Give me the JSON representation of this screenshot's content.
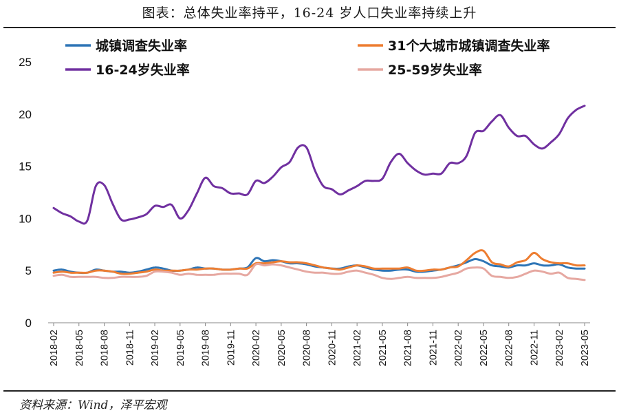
{
  "title": "图表：总体失业率持平，16-24 岁人口失业率持续上升",
  "source": "资料来源：Wind，泽平宏观",
  "chart_data": {
    "type": "line",
    "ylim": [
      0,
      25
    ],
    "yticks": [
      0,
      5,
      10,
      15,
      20,
      25
    ],
    "x_tick_labels": [
      "2018-02",
      "2018-05",
      "2018-08",
      "2018-11",
      "2019-02",
      "2019-05",
      "2019-08",
      "2019-11",
      "2020-02",
      "2020-05",
      "2020-08",
      "2020-11",
      "2021-02",
      "2021-05",
      "2021-08",
      "2021-11",
      "2022-02",
      "2022-05",
      "2022-08",
      "2022-11",
      "2023-02",
      "2023-05"
    ],
    "x": [
      "2018-02",
      "2018-03",
      "2018-04",
      "2018-05",
      "2018-06",
      "2018-07",
      "2018-08",
      "2018-09",
      "2018-10",
      "2018-11",
      "2018-12",
      "2019-01",
      "2019-02",
      "2019-03",
      "2019-04",
      "2019-05",
      "2019-06",
      "2019-07",
      "2019-08",
      "2019-09",
      "2019-10",
      "2019-11",
      "2019-12",
      "2020-01",
      "2020-02",
      "2020-03",
      "2020-04",
      "2020-05",
      "2020-06",
      "2020-07",
      "2020-08",
      "2020-09",
      "2020-10",
      "2020-11",
      "2020-12",
      "2021-01",
      "2021-02",
      "2021-03",
      "2021-04",
      "2021-05",
      "2021-06",
      "2021-07",
      "2021-08",
      "2021-09",
      "2021-10",
      "2021-11",
      "2021-12",
      "2022-01",
      "2022-02",
      "2022-03",
      "2022-04",
      "2022-05",
      "2022-06",
      "2022-07",
      "2022-08",
      "2022-09",
      "2022-10",
      "2022-11",
      "2022-12",
      "2023-01",
      "2023-02",
      "2023-03",
      "2023-04",
      "2023-05"
    ],
    "series": [
      {
        "name": "城镇调查失业率",
        "color": "#2e75b6",
        "values": [
          5.0,
          5.1,
          4.9,
          4.8,
          4.8,
          5.1,
          5.0,
          4.9,
          4.9,
          4.8,
          4.9,
          5.1,
          5.3,
          5.2,
          5.0,
          5.0,
          5.1,
          5.3,
          5.2,
          5.2,
          5.1,
          5.1,
          5.2,
          5.3,
          6.2,
          5.9,
          6.0,
          5.9,
          5.7,
          5.7,
          5.6,
          5.4,
          5.3,
          5.2,
          5.2,
          5.4,
          5.5,
          5.3,
          5.1,
          5.0,
          5.0,
          5.1,
          5.1,
          4.9,
          4.9,
          5.0,
          5.1,
          5.3,
          5.5,
          5.8,
          6.1,
          5.9,
          5.5,
          5.4,
          5.3,
          5.5,
          5.5,
          5.7,
          5.5,
          5.5,
          5.6,
          5.3,
          5.2,
          5.2
        ]
      },
      {
        "name": "31个大城市城镇调查失业率",
        "color": "#ed7d31",
        "values": [
          4.8,
          4.9,
          4.8,
          4.8,
          4.8,
          5.0,
          5.0,
          4.9,
          4.7,
          4.7,
          4.8,
          4.9,
          5.1,
          5.0,
          5.0,
          5.0,
          5.1,
          5.1,
          5.2,
          5.2,
          5.1,
          5.1,
          5.2,
          5.2,
          5.7,
          5.7,
          5.8,
          5.9,
          5.8,
          5.8,
          5.7,
          5.5,
          5.3,
          5.2,
          5.1,
          5.3,
          5.5,
          5.4,
          5.2,
          5.2,
          5.2,
          5.2,
          5.3,
          5.0,
          5.0,
          5.1,
          5.1,
          5.3,
          5.4,
          6.0,
          6.7,
          6.9,
          5.8,
          5.6,
          5.4,
          5.8,
          6.0,
          6.7,
          6.1,
          5.8,
          5.7,
          5.7,
          5.5,
          5.5
        ]
      },
      {
        "name": "16-24岁失业率",
        "color": "#7030a0",
        "values": [
          11.0,
          10.5,
          10.2,
          9.7,
          9.8,
          13.1,
          13.2,
          11.4,
          9.9,
          9.9,
          10.1,
          10.4,
          11.2,
          11.1,
          11.3,
          10.0,
          10.8,
          12.4,
          13.9,
          13.1,
          12.9,
          12.4,
          12.4,
          12.3,
          13.6,
          13.4,
          14.0,
          14.9,
          15.4,
          16.8,
          16.8,
          14.6,
          13.1,
          12.8,
          12.3,
          12.7,
          13.1,
          13.6,
          13.6,
          13.8,
          15.4,
          16.2,
          15.3,
          14.6,
          14.2,
          14.3,
          14.3,
          15.3,
          15.3,
          16.0,
          18.2,
          18.4,
          19.3,
          19.9,
          18.7,
          17.9,
          17.9,
          17.1,
          16.7,
          17.3,
          18.1,
          19.6,
          20.4,
          20.8
        ]
      },
      {
        "name": "25-59岁失业率",
        "color": "#e6a8a1",
        "values": [
          4.5,
          4.6,
          4.4,
          4.4,
          4.4,
          4.4,
          4.3,
          4.3,
          4.4,
          4.4,
          4.4,
          4.5,
          4.9,
          4.9,
          4.8,
          4.6,
          4.7,
          4.6,
          4.6,
          4.6,
          4.7,
          4.7,
          4.7,
          4.6,
          5.6,
          5.5,
          5.6,
          5.5,
          5.3,
          5.1,
          4.9,
          4.8,
          4.8,
          4.7,
          4.7,
          4.9,
          5.0,
          4.8,
          4.6,
          4.3,
          4.2,
          4.3,
          4.4,
          4.3,
          4.3,
          4.3,
          4.4,
          4.6,
          4.8,
          5.2,
          5.3,
          5.2,
          4.5,
          4.4,
          4.3,
          4.4,
          4.7,
          5.0,
          4.9,
          4.7,
          4.8,
          4.3,
          4.2,
          4.1
        ]
      }
    ]
  }
}
